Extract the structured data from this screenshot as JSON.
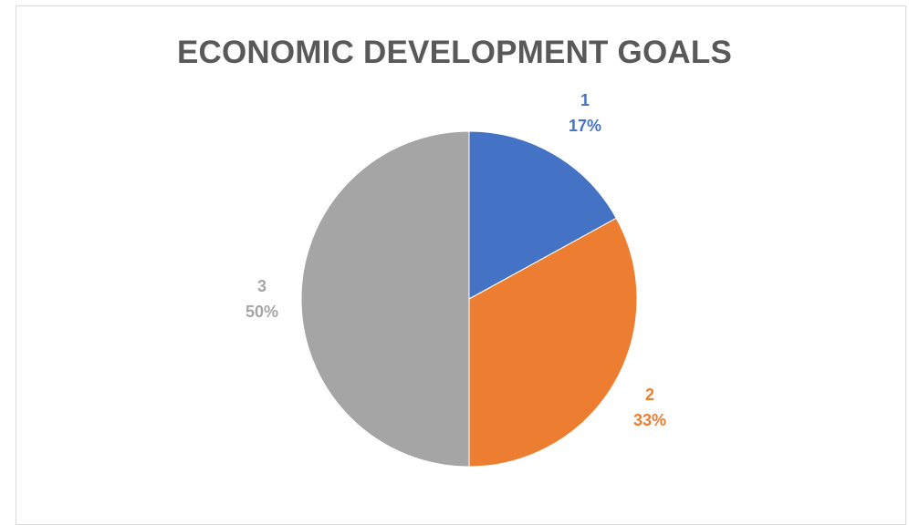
{
  "chart_data": {
    "type": "pie",
    "title": "ECONOMIC DEVELOPMENT GOALS",
    "categories": [
      "1",
      "2",
      "3"
    ],
    "values": [
      17,
      33,
      50
    ],
    "percent_labels": [
      "17%",
      "33%",
      "50%"
    ],
    "colors": [
      "#4472C4",
      "#ED7D31",
      "#A5A5A5"
    ],
    "legend": "none",
    "data_labels": "category and percentage, outside end"
  }
}
